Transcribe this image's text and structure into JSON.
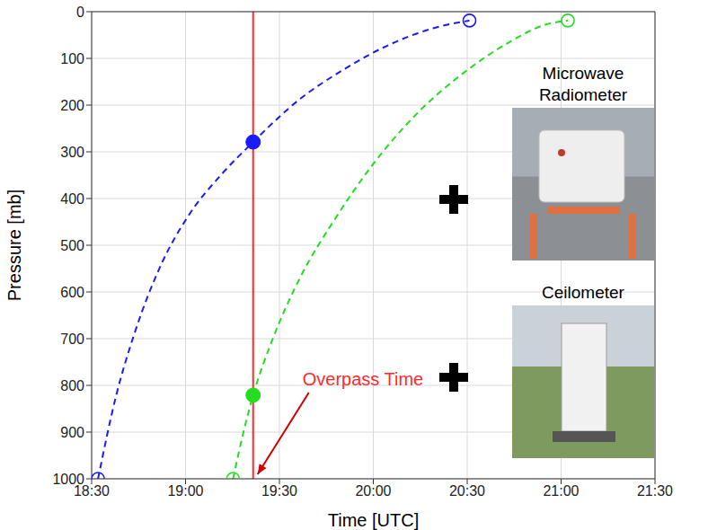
{
  "chart_data": {
    "type": "line",
    "x_label": "Time [UTC]",
    "y_label": "Pressure [mb]",
    "xlim": [
      18.5,
      21.5
    ],
    "xticks": [
      {
        "value": 18.5,
        "label": "18:30"
      },
      {
        "value": 19,
        "label": "19:00"
      },
      {
        "value": 19.5,
        "label": "19:30"
      },
      {
        "value": 20,
        "label": "20:00"
      },
      {
        "value": 20.5,
        "label": "20:30"
      },
      {
        "value": 21,
        "label": "21:00"
      },
      {
        "value": 21.5,
        "label": "21:30"
      }
    ],
    "ylim": [
      1000,
      0
    ],
    "yticks": [
      0,
      100,
      200,
      300,
      400,
      500,
      600,
      700,
      800,
      900,
      1000
    ],
    "grid": true,
    "series": [
      {
        "color": "#1a1aff",
        "line_style": "dashed",
        "marker": "circle",
        "x": [
          18.534,
          18.631,
          18.728,
          18.874,
          19.02,
          19.19,
          19.36,
          19.603,
          19.846,
          20.089,
          20.332,
          20.512
        ],
        "values": [
          1000,
          821,
          689,
          538,
          434,
          349,
          279,
          189,
          123,
          70,
          34,
          19
        ],
        "overpass_value": 279
      },
      {
        "color": "#22dd22",
        "line_style": "dashed",
        "marker": "circle",
        "x": [
          19.253,
          19.311,
          19.36,
          19.457,
          19.603,
          19.797,
          19.992,
          20.235,
          20.478,
          20.721,
          20.915,
          21.036
        ],
        "values": [
          1000,
          896,
          821,
          708,
          575,
          443,
          330,
          217,
          132,
          66,
          28,
          19
        ],
        "overpass_value": 821
      }
    ],
    "annotations": [
      {
        "text": "Overpass Time",
        "x": 19.36,
        "color": "#ff2a2a"
      }
    ],
    "instruments": [
      "Microwave Radiometer",
      "Ceilometer"
    ]
  }
}
